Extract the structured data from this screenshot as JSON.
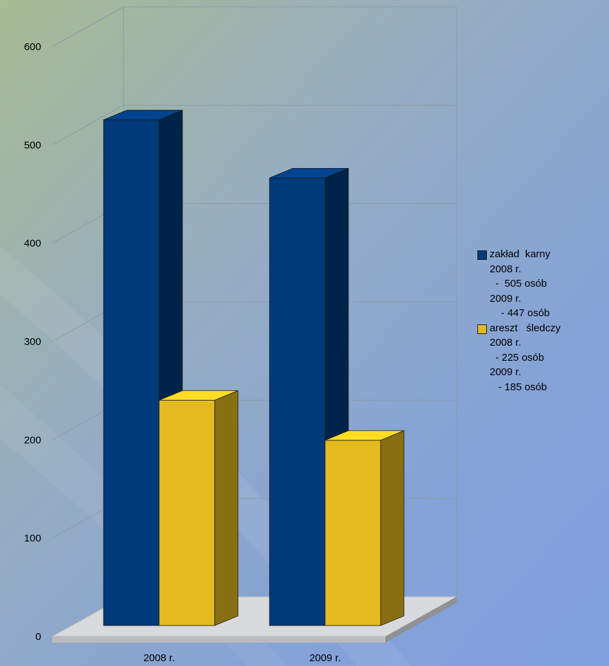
{
  "colors": {
    "series_1": "#003a7a",
    "series_2": "#e3bb1e"
  },
  "chart_data": {
    "type": "bar",
    "title": "",
    "xlabel": "",
    "ylabel": "",
    "categories": [
      "2008 r.",
      "2009 r."
    ],
    "series": [
      {
        "name": "zakład karny",
        "values": [
          505,
          447
        ]
      },
      {
        "name": "areszt śledczy",
        "values": [
          225,
          185
        ]
      }
    ],
    "ylim": [
      0,
      600
    ],
    "yticks": [
      {
        "value": 0,
        "label": "0"
      },
      {
        "value": 100,
        "label": "100"
      },
      {
        "value": 200,
        "label": "200"
      },
      {
        "value": 300,
        "label": "300"
      },
      {
        "value": 400,
        "label": "400"
      },
      {
        "value": 500,
        "label": "500"
      },
      {
        "value": 600,
        "label": "600"
      }
    ],
    "grid": true,
    "legend_position": "right",
    "style": "3d-column"
  },
  "legend": [
    {
      "lines": [
        "zakład  karny",
        "2008 r.",
        "  -  505 osób",
        "2009 r.",
        "    - 447 osób"
      ]
    },
    {
      "lines": [
        "areszt   śledczy",
        "2008 r.",
        "  - 225 osób",
        "2009 r.",
        "   - 185 osób"
      ]
    }
  ]
}
